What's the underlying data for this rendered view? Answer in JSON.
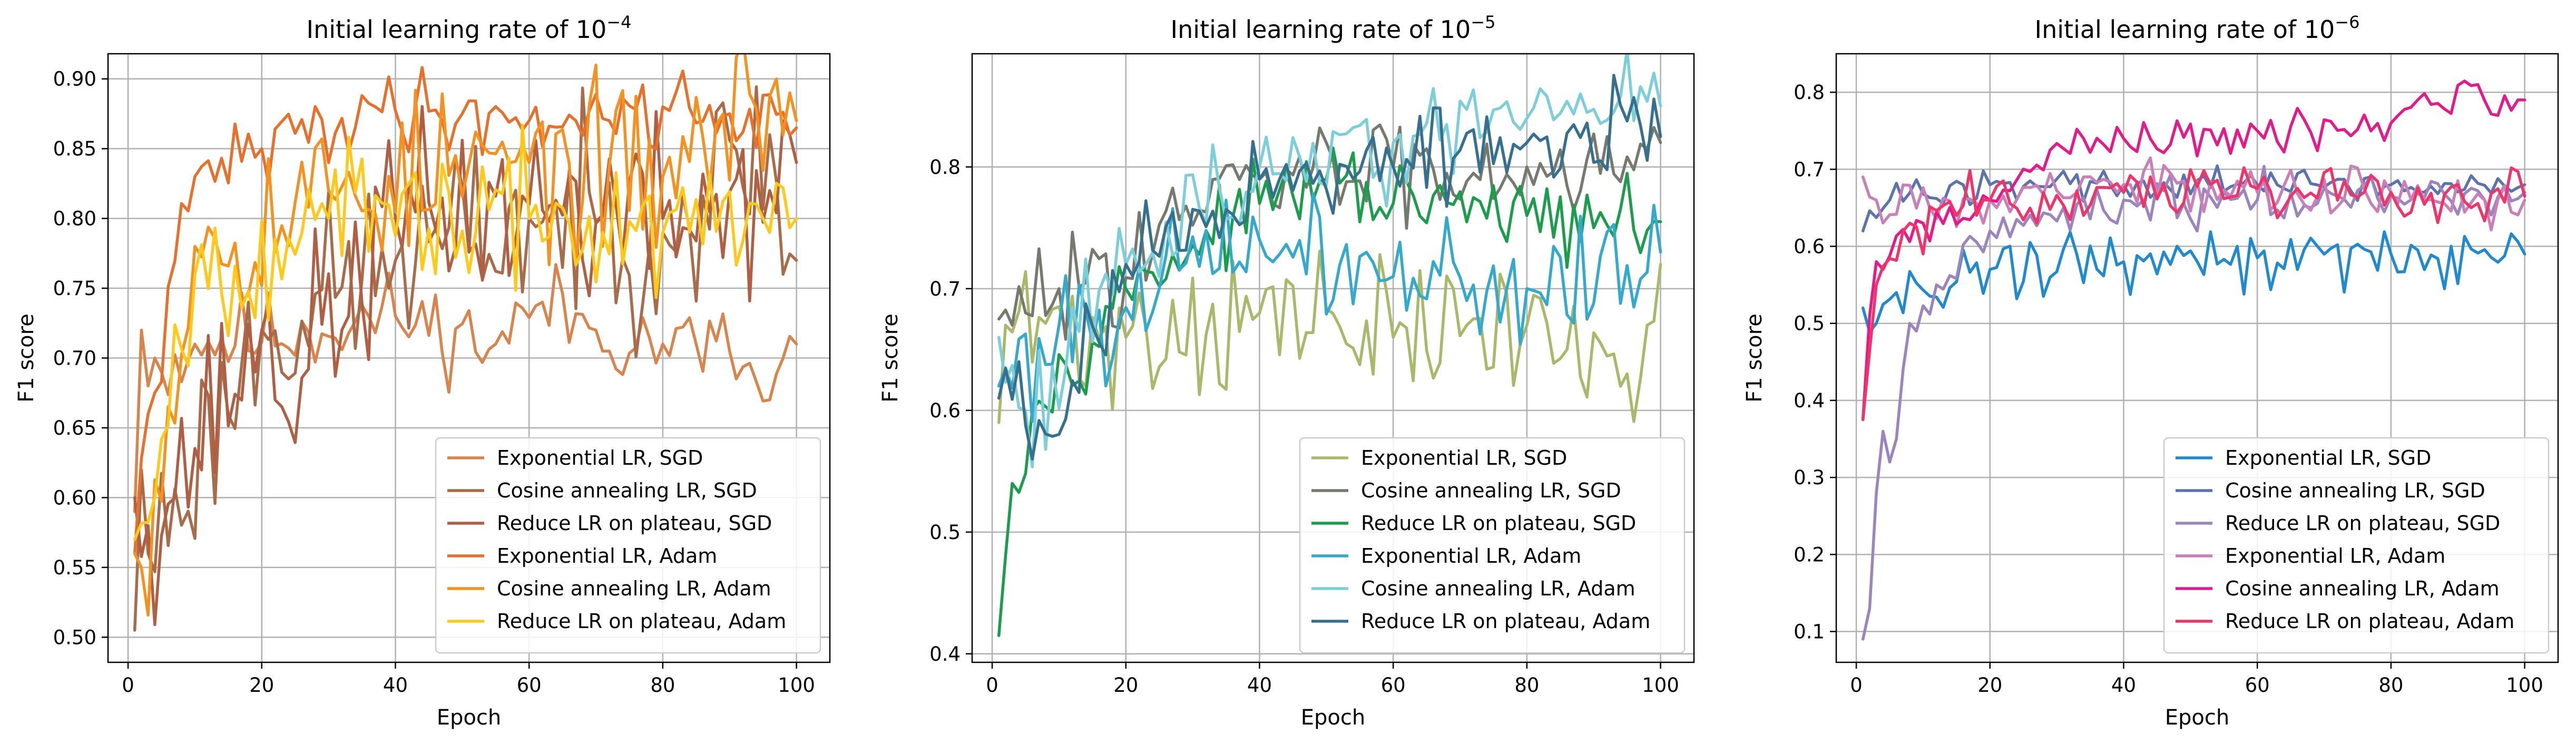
{
  "chart_data": [
    {
      "type": "line",
      "title": "Initial learning rate of 10",
      "title_exponent": "−4",
      "xlabel": "Epoch",
      "ylabel": "F1 score",
      "xlim": [
        -3,
        105
      ],
      "ylim": [
        0.482,
        0.918
      ],
      "xticks": [
        0,
        20,
        40,
        60,
        80,
        100
      ],
      "yticks": [
        0.5,
        0.55,
        0.6,
        0.65,
        0.7,
        0.75,
        0.8,
        0.85,
        0.9
      ],
      "ytick_labels": [
        "0.50",
        "0.55",
        "0.60",
        "0.65",
        "0.70",
        "0.75",
        "0.80",
        "0.85",
        "0.90"
      ],
      "grid": true,
      "legend_position": "lower right",
      "x": {
        "start": 1,
        "end": 100
      },
      "series": [
        {
          "name": "Exponential LR, SGD",
          "color": "#d8844a",
          "style": "plateau",
          "start": 0.59,
          "plateau": 0.705,
          "tau": 5,
          "amp": 0.016,
          "seed": 11,
          "anchors": [
            [
              1,
              0.59
            ],
            [
              2,
              0.72
            ],
            [
              3,
              0.68
            ],
            [
              4,
              0.7
            ],
            [
              5,
              0.69
            ],
            [
              10,
              0.71
            ],
            [
              40,
              0.73
            ],
            [
              55,
              0.71
            ],
            [
              62,
              0.74
            ],
            [
              70,
              0.72
            ],
            [
              80,
              0.71
            ],
            [
              90,
              0.705
            ],
            [
              96,
              0.67
            ],
            [
              98,
              0.7
            ],
            [
              100,
              0.71
            ]
          ]
        },
        {
          "name": "Cosine annealing LR, SGD",
          "color": "#a86c4a",
          "style": "plateau",
          "start": 0.5,
          "plateau": 0.78,
          "tau": 14,
          "amp": 0.035,
          "seed": 23,
          "anchors": [
            [
              1,
              0.505
            ],
            [
              2,
              0.62
            ],
            [
              3,
              0.56
            ],
            [
              20,
              0.72
            ],
            [
              40,
              0.77
            ],
            [
              60,
              0.8
            ],
            [
              80,
              0.79
            ],
            [
              96,
              0.86
            ],
            [
              98,
              0.76
            ],
            [
              100,
              0.77
            ]
          ]
        },
        {
          "name": "Reduce LR on plateau, SGD",
          "color": "#b05f43",
          "style": "plateau",
          "start": 0.58,
          "plateau": 0.78,
          "tau": 12,
          "amp": 0.035,
          "seed": 37,
          "anchors": [
            [
              1,
              0.6
            ],
            [
              3,
              0.58
            ],
            [
              20,
              0.72
            ],
            [
              22,
              0.67
            ],
            [
              40,
              0.8
            ],
            [
              60,
              0.81
            ],
            [
              80,
              0.8
            ],
            [
              96,
              0.82
            ],
            [
              98,
              0.87
            ],
            [
              100,
              0.84
            ]
          ]
        },
        {
          "name": "Exponential LR, Adam",
          "color": "#e8702a",
          "style": "plateau",
          "start": 0.56,
          "plateau": 0.87,
          "tau": 8,
          "amp": 0.014,
          "seed": 41,
          "anchors": [
            [
              1,
              0.56
            ],
            [
              3,
              0.66
            ],
            [
              10,
              0.83
            ],
            [
              20,
              0.85
            ],
            [
              37,
              0.88
            ],
            [
              50,
              0.875
            ],
            [
              60,
              0.87
            ],
            [
              80,
              0.88
            ],
            [
              90,
              0.875
            ],
            [
              100,
              0.865
            ]
          ]
        },
        {
          "name": "Cosine annealing LR, Adam",
          "color": "#f5911e",
          "style": "plateau",
          "start": 0.55,
          "plateau": 0.82,
          "tau": 9,
          "amp": 0.03,
          "seed": 53,
          "anchors": [
            [
              1,
              0.56
            ],
            [
              2,
              0.55
            ],
            [
              10,
              0.78
            ],
            [
              30,
              0.82
            ],
            [
              60,
              0.84
            ],
            [
              80,
              0.83
            ],
            [
              97,
              0.9
            ],
            [
              98,
              0.86
            ],
            [
              99,
              0.89
            ],
            [
              100,
              0.87
            ]
          ]
        },
        {
          "name": "Reduce LR on plateau, Adam",
          "color": "#ffc91a",
          "style": "plateau",
          "start": 0.56,
          "plateau": 0.8,
          "tau": 9,
          "amp": 0.025,
          "seed": 67,
          "anchors": [
            [
              1,
              0.57
            ],
            [
              10,
              0.76
            ],
            [
              30,
              0.8
            ],
            [
              60,
              0.8
            ],
            [
              80,
              0.79
            ],
            [
              95,
              0.8
            ],
            [
              100,
              0.8
            ]
          ]
        }
      ]
    },
    {
      "type": "line",
      "title": "Initial learning rate of 10",
      "title_exponent": "−5",
      "xlabel": "Epoch",
      "ylabel": "F1 score",
      "xlim": [
        -3,
        105
      ],
      "ylim": [
        0.393,
        0.893
      ],
      "xticks": [
        0,
        20,
        40,
        60,
        80,
        100
      ],
      "yticks": [
        0.4,
        0.5,
        0.6,
        0.7,
        0.8
      ],
      "ytick_labels": [
        "0.4",
        "0.5",
        "0.6",
        "0.7",
        "0.8"
      ],
      "grid": true,
      "legend_position": "lower right",
      "x": {
        "start": 1,
        "end": 100
      },
      "series": [
        {
          "name": "Exponential LR, SGD",
          "color": "#a9b96a",
          "style": "plateau",
          "start": 0.6,
          "plateau": 0.67,
          "tau": 6,
          "amp": 0.03,
          "seed": 71,
          "anchors": [
            [
              1,
              0.59
            ],
            [
              2,
              0.67
            ],
            [
              20,
              0.66
            ],
            [
              40,
              0.68
            ],
            [
              60,
              0.66
            ],
            [
              80,
              0.67
            ],
            [
              95,
              0.63
            ],
            [
              98,
              0.67
            ],
            [
              100,
              0.72
            ]
          ]
        },
        {
          "name": "Cosine annealing LR, SGD",
          "color": "#767a6e",
          "style": "plateau",
          "start": 0.67,
          "plateau": 0.8,
          "tau": 14,
          "amp": 0.022,
          "seed": 83,
          "anchors": [
            [
              1,
              0.675
            ],
            [
              3,
              0.67
            ],
            [
              10,
              0.7
            ],
            [
              40,
              0.79
            ],
            [
              60,
              0.8
            ],
            [
              80,
              0.8
            ],
            [
              100,
              0.82
            ]
          ]
        },
        {
          "name": "Reduce LR on plateau, SGD",
          "color": "#1a9e4c",
          "style": "plateau",
          "start": 0.42,
          "plateau": 0.77,
          "tau": 10,
          "amp": 0.015,
          "seed": 97,
          "anchors": [
            [
              1,
              0.415
            ],
            [
              2,
              0.48
            ],
            [
              3,
              0.54
            ],
            [
              6,
              0.6
            ],
            [
              20,
              0.7
            ],
            [
              40,
              0.77
            ],
            [
              50,
              0.79
            ],
            [
              60,
              0.77
            ],
            [
              80,
              0.76
            ],
            [
              90,
              0.75
            ],
            [
              100,
              0.755
            ]
          ]
        },
        {
          "name": "Exponential LR, Adam",
          "color": "#33aacc",
          "style": "plateau",
          "start": 0.6,
          "plateau": 0.7,
          "tau": 5,
          "amp": 0.025,
          "seed": 101,
          "anchors": [
            [
              1,
              0.62
            ],
            [
              10,
              0.67
            ],
            [
              25,
              0.7
            ],
            [
              40,
              0.74
            ],
            [
              60,
              0.71
            ],
            [
              80,
              0.7
            ],
            [
              100,
              0.73
            ]
          ]
        },
        {
          "name": "Cosine annealing LR, Adam",
          "color": "#7ccfd9",
          "style": "plateau",
          "start": 0.61,
          "plateau": 0.83,
          "tau": 16,
          "amp": 0.022,
          "seed": 113,
          "anchors": [
            [
              1,
              0.66
            ],
            [
              5,
              0.6
            ],
            [
              20,
              0.72
            ],
            [
              40,
              0.8
            ],
            [
              60,
              0.82
            ],
            [
              80,
              0.84
            ],
            [
              88,
              0.86
            ],
            [
              100,
              0.85
            ]
          ]
        },
        {
          "name": "Reduce LR on plateau, Adam",
          "color": "#35708f",
          "style": "plateau",
          "start": 0.62,
          "plateau": 0.81,
          "tau": 14,
          "amp": 0.02,
          "seed": 127,
          "anchors": [
            [
              1,
              0.61
            ],
            [
              4,
              0.64
            ],
            [
              6,
              0.56
            ],
            [
              20,
              0.72
            ],
            [
              40,
              0.79
            ],
            [
              60,
              0.8
            ],
            [
              80,
              0.82
            ],
            [
              100,
              0.825
            ]
          ]
        }
      ]
    },
    {
      "type": "line",
      "title": "Initial learning rate of 10",
      "title_exponent": "−6",
      "xlabel": "Epoch",
      "ylabel": "F1 score",
      "xlim": [
        -3,
        105
      ],
      "ylim": [
        0.06,
        0.85
      ],
      "xticks": [
        0,
        20,
        40,
        60,
        80,
        100
      ],
      "yticks": [
        0.1,
        0.2,
        0.3,
        0.4,
        0.5,
        0.6,
        0.7,
        0.8
      ],
      "ytick_labels": [
        "0.1",
        "0.2",
        "0.3",
        "0.4",
        "0.5",
        "0.6",
        "0.7",
        "0.8"
      ],
      "grid": true,
      "legend_position": "lower right",
      "x": {
        "start": 1,
        "end": 100
      },
      "series": [
        {
          "name": "Exponential LR, SGD",
          "color": "#1f8ad0",
          "style": "plateau",
          "start": 0.52,
          "plateau": 0.58,
          "tau": 8,
          "amp": 0.02,
          "seed": 131,
          "anchors": [
            [
              1,
              0.52
            ],
            [
              3,
              0.5
            ],
            [
              6,
              0.54
            ],
            [
              20,
              0.57
            ],
            [
              40,
              0.58
            ],
            [
              60,
              0.585
            ],
            [
              80,
              0.59
            ],
            [
              100,
              0.59
            ]
          ]
        },
        {
          "name": "Cosine annealing LR, SGD",
          "color": "#5b74b0",
          "style": "plateau",
          "start": 0.62,
          "plateau": 0.68,
          "tau": 5,
          "amp": 0.012,
          "seed": 139,
          "anchors": [
            [
              1,
              0.62
            ],
            [
              5,
              0.66
            ],
            [
              20,
              0.68
            ],
            [
              40,
              0.68
            ],
            [
              60,
              0.68
            ],
            [
              80,
              0.68
            ],
            [
              100,
              0.68
            ]
          ]
        },
        {
          "name": "Reduce LR on plateau, SGD",
          "color": "#9a85bf",
          "style": "plateau",
          "start": 0.09,
          "plateau": 0.66,
          "tau": 7,
          "amp": 0.015,
          "seed": 149,
          "anchors": [
            [
              1,
              0.09
            ],
            [
              2,
              0.13
            ],
            [
              3,
              0.28
            ],
            [
              4,
              0.36
            ],
            [
              5,
              0.32
            ],
            [
              6,
              0.35
            ],
            [
              7,
              0.44
            ],
            [
              8,
              0.5
            ],
            [
              9,
              0.49
            ],
            [
              12,
              0.55
            ],
            [
              20,
              0.62
            ],
            [
              40,
              0.66
            ],
            [
              60,
              0.66
            ],
            [
              80,
              0.665
            ],
            [
              100,
              0.67
            ]
          ]
        },
        {
          "name": "Exponential LR, Adam",
          "color": "#c97fb8",
          "style": "plateau",
          "start": 0.69,
          "plateau": 0.67,
          "tau": 4,
          "amp": 0.015,
          "seed": 157,
          "anchors": [
            [
              1,
              0.69
            ],
            [
              3,
              0.66
            ],
            [
              20,
              0.66
            ],
            [
              40,
              0.68
            ],
            [
              60,
              0.67
            ],
            [
              80,
              0.67
            ],
            [
              100,
              0.66
            ]
          ]
        },
        {
          "name": "Cosine annealing LR, Adam",
          "color": "#e6188a",
          "style": "plateau",
          "start": 0.38,
          "plateau": 0.76,
          "tau": 10,
          "amp": 0.012,
          "seed": 163,
          "anchors": [
            [
              1,
              0.375
            ],
            [
              2,
              0.51
            ],
            [
              3,
              0.58
            ],
            [
              10,
              0.63
            ],
            [
              20,
              0.66
            ],
            [
              34,
              0.74
            ],
            [
              40,
              0.74
            ],
            [
              60,
              0.75
            ],
            [
              80,
              0.76
            ],
            [
              93,
              0.81
            ],
            [
              96,
              0.77
            ],
            [
              100,
              0.79
            ]
          ]
        },
        {
          "name": "Reduce LR on plateau, Adam",
          "color": "#f0346a",
          "style": "plateau",
          "start": 0.38,
          "plateau": 0.67,
          "tau": 6,
          "amp": 0.017,
          "seed": 173,
          "anchors": [
            [
              1,
              0.375
            ],
            [
              3,
              0.55
            ],
            [
              8,
              0.63
            ],
            [
              20,
              0.66
            ],
            [
              40,
              0.67
            ],
            [
              60,
              0.675
            ],
            [
              80,
              0.67
            ],
            [
              100,
              0.665
            ]
          ]
        }
      ]
    }
  ]
}
